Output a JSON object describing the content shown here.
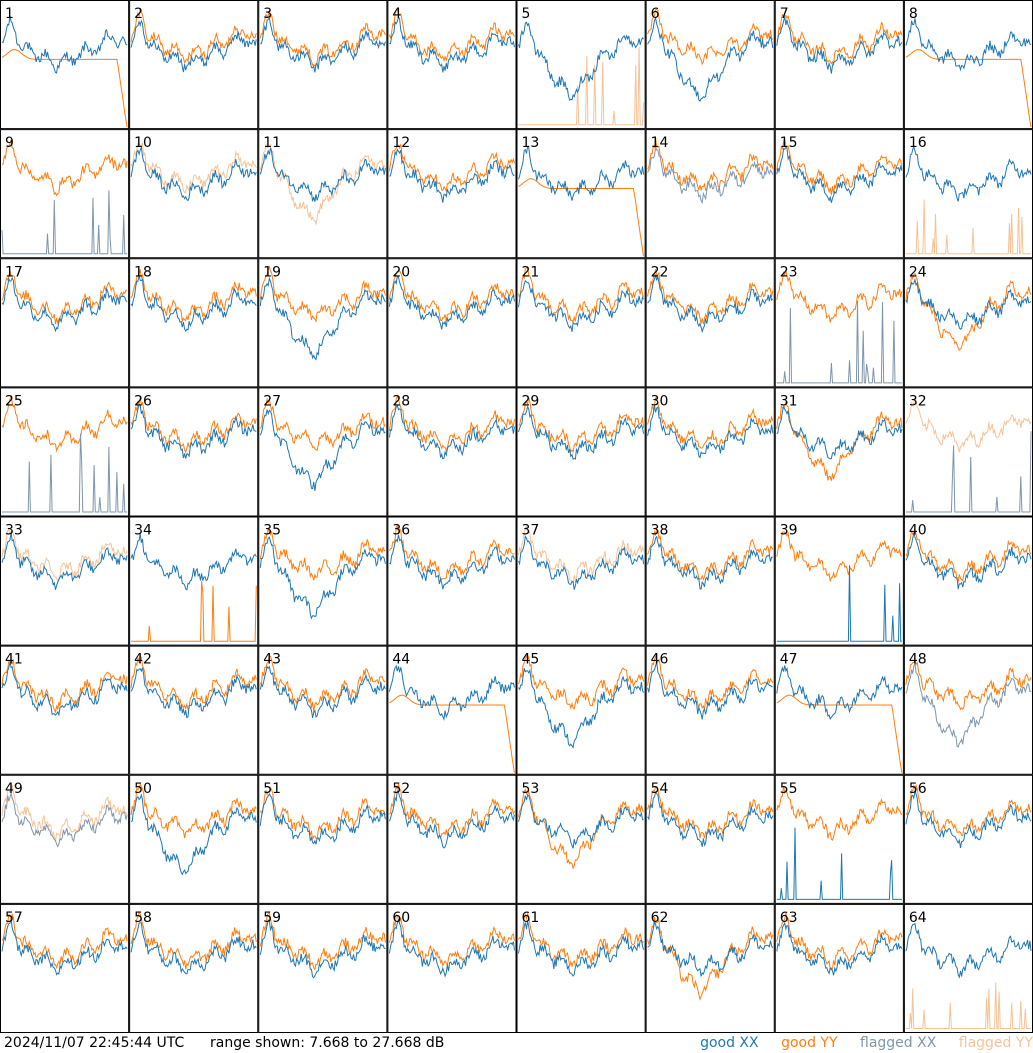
{
  "footer": {
    "timestamp": "2024/11/07 22:45:44 UTC",
    "range_text": "range shown: 7.668 to 27.668 dB"
  },
  "legend": [
    {
      "label": "good XX",
      "color": "#1f77b4"
    },
    {
      "label": "good YY",
      "color": "#ff7f0e"
    },
    {
      "label": "flagged XX",
      "color": "#7f96ad"
    },
    {
      "label": "flagged YY",
      "color": "#f7c396"
    }
  ],
  "chart_data": {
    "type": "line",
    "grid": "8x8 small multiples, one panel per antenna",
    "ylim": [
      7.668,
      27.668
    ],
    "y_units": "dB",
    "panels": [
      {
        "id": "1",
        "xx": "good",
        "yy": "good",
        "xx_shape": "normal",
        "yy_shape": "smooth"
      },
      {
        "id": "2",
        "xx": "good",
        "yy": "good",
        "xx_shape": "normal",
        "yy_shape": "normal"
      },
      {
        "id": "3",
        "xx": "good",
        "yy": "good",
        "xx_shape": "normal",
        "yy_shape": "normal"
      },
      {
        "id": "4",
        "xx": "good",
        "yy": "good",
        "xx_shape": "normal",
        "yy_shape": "normal"
      },
      {
        "id": "5",
        "xx": "good",
        "yy": "flagged",
        "xx_shape": "dip",
        "yy_shape": "spikes"
      },
      {
        "id": "6",
        "xx": "good",
        "yy": "good",
        "xx_shape": "dip",
        "yy_shape": "normal"
      },
      {
        "id": "7",
        "xx": "good",
        "yy": "good",
        "xx_shape": "normal",
        "yy_shape": "normal"
      },
      {
        "id": "8",
        "xx": "good",
        "yy": "good",
        "xx_shape": "normal",
        "yy_shape": "smooth"
      },
      {
        "id": "9",
        "xx": "flagged",
        "yy": "good",
        "xx_shape": "spikes",
        "yy_shape": "normal"
      },
      {
        "id": "10",
        "xx": "good",
        "yy": "flagged",
        "xx_shape": "normal",
        "yy_shape": "normal"
      },
      {
        "id": "11",
        "xx": "good",
        "yy": "flagged",
        "xx_shape": "normal",
        "yy_shape": "dip"
      },
      {
        "id": "12",
        "xx": "good",
        "yy": "good",
        "xx_shape": "normal",
        "yy_shape": "normal"
      },
      {
        "id": "13",
        "xx": "good",
        "yy": "good",
        "xx_shape": "normal",
        "yy_shape": "smooth"
      },
      {
        "id": "14",
        "xx": "flagged",
        "yy": "good",
        "xx_shape": "normal",
        "yy_shape": "normal"
      },
      {
        "id": "15",
        "xx": "good",
        "yy": "good",
        "xx_shape": "normal",
        "yy_shape": "normal"
      },
      {
        "id": "16",
        "xx": "good",
        "yy": "flagged",
        "xx_shape": "normal",
        "yy_shape": "spikes"
      },
      {
        "id": "17",
        "xx": "good",
        "yy": "good",
        "xx_shape": "normal",
        "yy_shape": "normal"
      },
      {
        "id": "18",
        "xx": "good",
        "yy": "good",
        "xx_shape": "normal",
        "yy_shape": "normal"
      },
      {
        "id": "19",
        "xx": "good",
        "yy": "good",
        "xx_shape": "dip",
        "yy_shape": "normal"
      },
      {
        "id": "20",
        "xx": "good",
        "yy": "good",
        "xx_shape": "normal",
        "yy_shape": "normal"
      },
      {
        "id": "21",
        "xx": "good",
        "yy": "good",
        "xx_shape": "normal",
        "yy_shape": "normal"
      },
      {
        "id": "22",
        "xx": "good",
        "yy": "good",
        "xx_shape": "normal",
        "yy_shape": "normal"
      },
      {
        "id": "23",
        "xx": "flagged",
        "yy": "good",
        "xx_shape": "spikes",
        "yy_shape": "normal"
      },
      {
        "id": "24",
        "xx": "good",
        "yy": "good",
        "xx_shape": "normal",
        "yy_shape": "dip"
      },
      {
        "id": "25",
        "xx": "flagged",
        "yy": "good",
        "xx_shape": "spikes",
        "yy_shape": "normal"
      },
      {
        "id": "26",
        "xx": "good",
        "yy": "good",
        "xx_shape": "normal",
        "yy_shape": "normal"
      },
      {
        "id": "27",
        "xx": "good",
        "yy": "good",
        "xx_shape": "dip",
        "yy_shape": "normal"
      },
      {
        "id": "28",
        "xx": "good",
        "yy": "good",
        "xx_shape": "normal",
        "yy_shape": "normal"
      },
      {
        "id": "29",
        "xx": "good",
        "yy": "good",
        "xx_shape": "normal",
        "yy_shape": "normal"
      },
      {
        "id": "30",
        "xx": "good",
        "yy": "good",
        "xx_shape": "normal",
        "yy_shape": "normal"
      },
      {
        "id": "31",
        "xx": "good",
        "yy": "good",
        "xx_shape": "normal",
        "yy_shape": "dip"
      },
      {
        "id": "32",
        "xx": "flagged",
        "yy": "flagged",
        "xx_shape": "spikes",
        "yy_shape": "normal"
      },
      {
        "id": "33",
        "xx": "good",
        "yy": "flagged",
        "xx_shape": "normal",
        "yy_shape": "normal"
      },
      {
        "id": "34",
        "xx": "good",
        "yy": "good",
        "xx_shape": "normal",
        "yy_shape": "spikes"
      },
      {
        "id": "35",
        "xx": "good",
        "yy": "good",
        "xx_shape": "dip",
        "yy_shape": "normal"
      },
      {
        "id": "36",
        "xx": "good",
        "yy": "good",
        "xx_shape": "normal",
        "yy_shape": "normal"
      },
      {
        "id": "37",
        "xx": "good",
        "yy": "flagged",
        "xx_shape": "normal",
        "yy_shape": "normal"
      },
      {
        "id": "38",
        "xx": "good",
        "yy": "good",
        "xx_shape": "normal",
        "yy_shape": "normal"
      },
      {
        "id": "39",
        "xx": "good",
        "yy": "good",
        "xx_shape": "spikes",
        "yy_shape": "normal"
      },
      {
        "id": "40",
        "xx": "good",
        "yy": "good",
        "xx_shape": "normal",
        "yy_shape": "normal"
      },
      {
        "id": "41",
        "xx": "good",
        "yy": "good",
        "xx_shape": "normal",
        "yy_shape": "normal"
      },
      {
        "id": "42",
        "xx": "good",
        "yy": "good",
        "xx_shape": "normal",
        "yy_shape": "normal"
      },
      {
        "id": "43",
        "xx": "good",
        "yy": "good",
        "xx_shape": "normal",
        "yy_shape": "normal"
      },
      {
        "id": "44",
        "xx": "good",
        "yy": "good",
        "xx_shape": "normal",
        "yy_shape": "smooth"
      },
      {
        "id": "45",
        "xx": "good",
        "yy": "good",
        "xx_shape": "dip",
        "yy_shape": "normal"
      },
      {
        "id": "46",
        "xx": "good",
        "yy": "good",
        "xx_shape": "normal",
        "yy_shape": "normal"
      },
      {
        "id": "47",
        "xx": "good",
        "yy": "good",
        "xx_shape": "normal",
        "yy_shape": "smooth"
      },
      {
        "id": "48",
        "xx": "flagged",
        "yy": "good",
        "xx_shape": "dip",
        "yy_shape": "normal"
      },
      {
        "id": "49",
        "xx": "flagged",
        "yy": "flagged",
        "xx_shape": "normal",
        "yy_shape": "normal"
      },
      {
        "id": "50",
        "xx": "good",
        "yy": "good",
        "xx_shape": "dip",
        "yy_shape": "normal"
      },
      {
        "id": "51",
        "xx": "good",
        "yy": "good",
        "xx_shape": "normal",
        "yy_shape": "normal"
      },
      {
        "id": "52",
        "xx": "good",
        "yy": "good",
        "xx_shape": "normal",
        "yy_shape": "normal"
      },
      {
        "id": "53",
        "xx": "good",
        "yy": "good",
        "xx_shape": "normal",
        "yy_shape": "dip"
      },
      {
        "id": "54",
        "xx": "good",
        "yy": "good",
        "xx_shape": "normal",
        "yy_shape": "normal"
      },
      {
        "id": "55",
        "xx": "good",
        "yy": "good",
        "xx_shape": "spikes",
        "yy_shape": "normal"
      },
      {
        "id": "56",
        "xx": "good",
        "yy": "good",
        "xx_shape": "normal",
        "yy_shape": "normal"
      },
      {
        "id": "57",
        "xx": "good",
        "yy": "good",
        "xx_shape": "normal",
        "yy_shape": "normal"
      },
      {
        "id": "58",
        "xx": "good",
        "yy": "good",
        "xx_shape": "normal",
        "yy_shape": "normal"
      },
      {
        "id": "59",
        "xx": "good",
        "yy": "good",
        "xx_shape": "normal",
        "yy_shape": "normal"
      },
      {
        "id": "60",
        "xx": "good",
        "yy": "good",
        "xx_shape": "normal",
        "yy_shape": "normal"
      },
      {
        "id": "61",
        "xx": "good",
        "yy": "good",
        "xx_shape": "normal",
        "yy_shape": "normal"
      },
      {
        "id": "62",
        "xx": "good",
        "yy": "good",
        "xx_shape": "normal",
        "yy_shape": "dip"
      },
      {
        "id": "63",
        "xx": "good",
        "yy": "good",
        "xx_shape": "normal",
        "yy_shape": "normal"
      },
      {
        "id": "64",
        "xx": "good",
        "yy": "flagged",
        "xx_shape": "normal",
        "yy_shape": "spikes"
      }
    ]
  }
}
